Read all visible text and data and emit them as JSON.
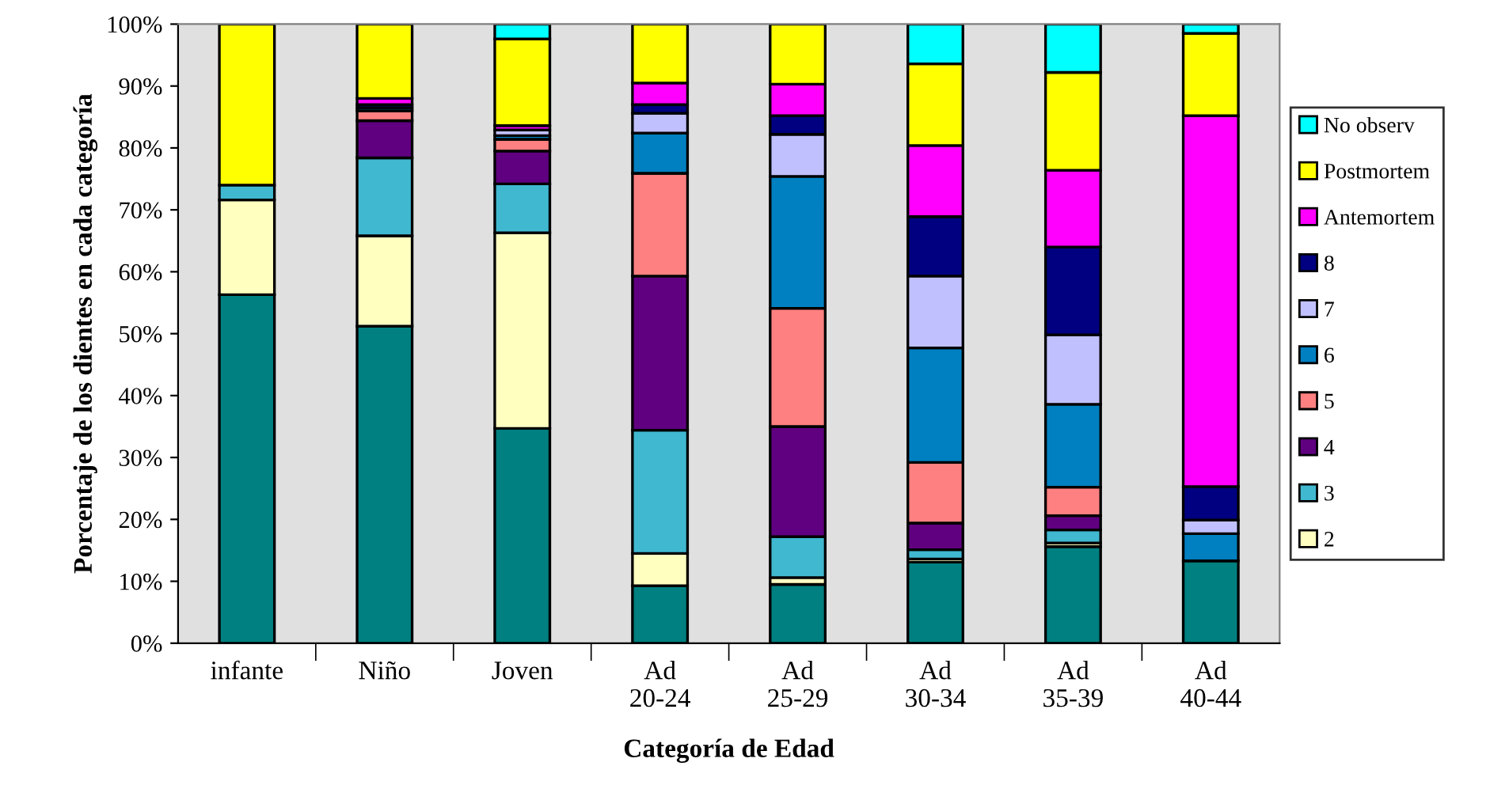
{
  "chart_data": {
    "type": "bar",
    "stacked": true,
    "xlabel": "Categoría de Edad",
    "ylabel": "Porcentaje de los dientes en cada categoría",
    "categories": [
      "infante",
      "Niño",
      "Joven",
      "Ad\n20-24",
      "Ad\n25-29",
      "Ad\n30-34",
      "Ad\n35-39",
      "Ad\n40-44"
    ],
    "ylim": [
      0,
      100
    ],
    "yticks": [
      {
        "value": 0,
        "label": "0%"
      },
      {
        "value": 10,
        "label": "10%"
      },
      {
        "value": 20,
        "label": "20%"
      },
      {
        "value": 30,
        "label": "30%"
      },
      {
        "value": 40,
        "label": "40%"
      },
      {
        "value": 50,
        "label": "50%"
      },
      {
        "value": 60,
        "label": "60%"
      },
      {
        "value": 70,
        "label": "70%"
      },
      {
        "value": 80,
        "label": "80%"
      },
      {
        "value": 90,
        "label": "90%"
      },
      {
        "value": 100,
        "label": "100%"
      }
    ],
    "grid": false,
    "legend": "right",
    "series": [
      {
        "color": "#008080",
        "values": [
          56.3,
          51.2,
          34.7,
          9.3,
          9.5,
          13.1,
          15.6,
          13.3
        ]
      },
      {
        "name": "2",
        "color": "#ffffc0",
        "values": [
          15.3,
          14.6,
          31.6,
          5.2,
          1.1,
          0.5,
          0.6,
          null
        ]
      },
      {
        "name": "3",
        "color": "#40b8d0",
        "values": [
          2.4,
          12.6,
          7.9,
          19.9,
          6.6,
          1.5,
          2.1,
          0
        ]
      },
      {
        "name": "4",
        "color": "#600080",
        "values": [
          0,
          6.0,
          5.3,
          24.9,
          17.8,
          4.3,
          2.3,
          0
        ]
      },
      {
        "name": "5",
        "color": "#ff8080",
        "values": [
          0,
          1.6,
          1.9,
          16.6,
          19.1,
          9.8,
          4.6,
          null
        ]
      },
      {
        "name": "6",
        "color": "#0080c0",
        "values": [
          0,
          0.5,
          0.6,
          6.5,
          21.3,
          18.5,
          13.4,
          4.4
        ]
      },
      {
        "name": "7",
        "color": "#c0c0ff",
        "values": [
          0,
          0,
          0.9,
          3.2,
          6.8,
          11.6,
          11.2,
          2.2
        ]
      },
      {
        "name": "8",
        "color": "#000080",
        "values": [
          0,
          0.5,
          null,
          1.4,
          3.0,
          9.6,
          14.2,
          5.4
        ]
      },
      {
        "name": "Antemortem",
        "color": "#ff00ff",
        "values": [
          0,
          1.0,
          0.7,
          3.5,
          5.1,
          11.5,
          12.4,
          59.9
        ]
      },
      {
        "name": "Postmortem",
        "color": "#ffff00",
        "values": [
          26.0,
          12.0,
          14.0,
          9.5,
          9.7,
          13.2,
          15.8,
          13.3
        ]
      },
      {
        "name": "No observ",
        "color": "#00ffff",
        "values": [
          0,
          0,
          2.4,
          0,
          0,
          6.4,
          7.8,
          1.5
        ]
      }
    ]
  }
}
